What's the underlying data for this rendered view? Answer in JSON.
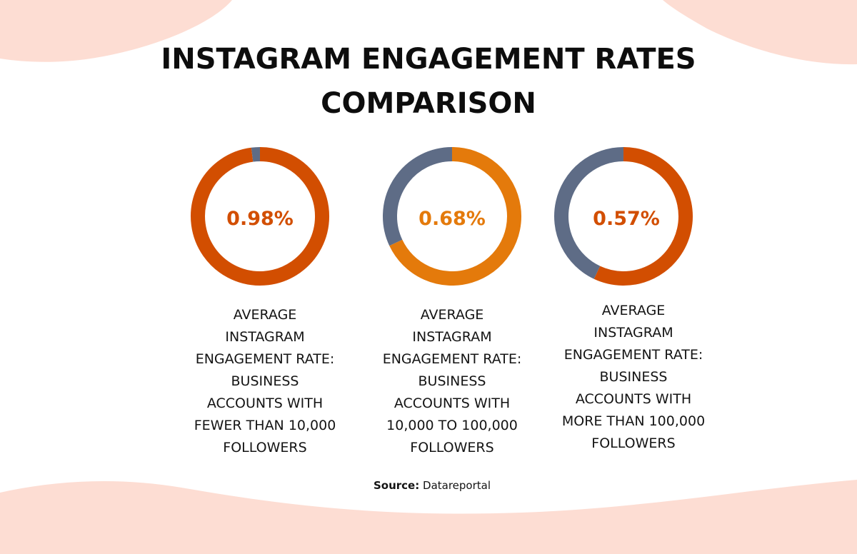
{
  "title_lines": [
    "INSTAGRAM ENGAGEMENT RATES",
    "COMPARISON"
  ],
  "chart_data": [
    {
      "type": "pie",
      "style": "donut",
      "value": 0.98,
      "value_label": "0.98%",
      "slices": [
        {
          "name": "engagement",
          "share": 0.98
        },
        {
          "name": "remainder",
          "share": 0.02
        }
      ],
      "caption_lines": [
        "AVERAGE",
        "INSTAGRAM",
        "ENGAGEMENT RATE:",
        "BUSINESS",
        "ACCOUNTS WITH",
        "FEWER THAN 10,000",
        "FOLLOWERS"
      ],
      "colors": {
        "value": "#D24E01",
        "rest": "#5E6C86",
        "label": "#D24E01"
      }
    },
    {
      "type": "pie",
      "style": "donut",
      "value": 0.68,
      "value_label": "0.68%",
      "slices": [
        {
          "name": "engagement",
          "share": 0.68
        },
        {
          "name": "remainder",
          "share": 0.32
        }
      ],
      "caption_lines": [
        "AVERAGE",
        "INSTAGRAM",
        "ENGAGEMENT RATE:",
        "BUSINESS",
        "ACCOUNTS WITH",
        "10,000 TO 100,000",
        "FOLLOWERS"
      ],
      "colors": {
        "value": "#E47A0B",
        "rest": "#5E6C86",
        "label": "#E47A0B"
      }
    },
    {
      "type": "pie",
      "style": "donut",
      "value": 0.57,
      "value_label": "0.57%",
      "slices": [
        {
          "name": "engagement",
          "share": 0.57
        },
        {
          "name": "remainder",
          "share": 0.43
        }
      ],
      "caption_lines": [
        "AVERAGE",
        "INSTAGRAM",
        "ENGAGEMENT RATE:",
        "BUSINESS",
        "ACCOUNTS WITH",
        "MORE THAN 100,000",
        "FOLLOWERS"
      ],
      "colors": {
        "value": "#D24E01",
        "rest": "#5E6C86",
        "label": "#D24E01"
      }
    }
  ],
  "source": {
    "label": "Source:",
    "text": "Datareportal"
  },
  "colors": {
    "blob": "#FDDDD3",
    "title": "#0D0D0D"
  }
}
